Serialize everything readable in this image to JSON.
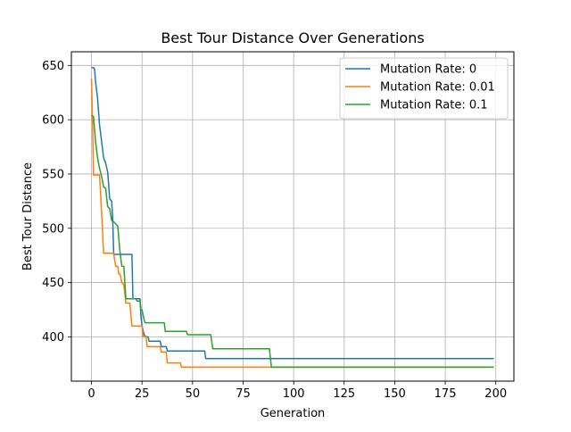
{
  "chart_data": {
    "type": "line",
    "title": "Best Tour Distance Over Generations",
    "xlabel": "Generation",
    "ylabel": "Best Tour Distance",
    "xlim": [
      -9.95,
      208.95
    ],
    "ylim": [
      359.2,
      662.6
    ],
    "xticks": [
      0,
      25,
      50,
      75,
      100,
      125,
      150,
      175,
      200
    ],
    "yticks": [
      400,
      450,
      500,
      550,
      600,
      650
    ],
    "grid": true,
    "legend_position": "top-right",
    "series": [
      {
        "name": "Mutation Rate: 0",
        "color": "#1f77b4",
        "points": [
          [
            0,
            648
          ],
          [
            1,
            648
          ],
          [
            1.5,
            647
          ],
          [
            2,
            635
          ],
          [
            3,
            620
          ],
          [
            4,
            595
          ],
          [
            5,
            580
          ],
          [
            6,
            565
          ],
          [
            7,
            560
          ],
          [
            8,
            552
          ],
          [
            8.5,
            540
          ],
          [
            9,
            527
          ],
          [
            10,
            525
          ],
          [
            10.5,
            508
          ],
          [
            11,
            476
          ],
          [
            20,
            476
          ],
          [
            20.5,
            435
          ],
          [
            24,
            435
          ],
          [
            24.5,
            418
          ],
          [
            25,
            410
          ],
          [
            26,
            402
          ],
          [
            27,
            400
          ],
          [
            28,
            400
          ],
          [
            28.5,
            396
          ],
          [
            34,
            396
          ],
          [
            34.5,
            391
          ],
          [
            37,
            391
          ],
          [
            37.5,
            387
          ],
          [
            56,
            387
          ],
          [
            56.5,
            380
          ],
          [
            199,
            380
          ]
        ]
      },
      {
        "name": "Mutation Rate: 0.01",
        "color": "#ff7f0e",
        "points": [
          [
            0,
            638
          ],
          [
            0.5,
            600
          ],
          [
            1,
            549
          ],
          [
            4,
            549
          ],
          [
            5,
            515
          ],
          [
            6,
            477
          ],
          [
            11,
            477
          ],
          [
            11.5,
            470
          ],
          [
            12,
            465
          ],
          [
            13,
            465
          ],
          [
            13.5,
            458
          ],
          [
            14,
            458
          ],
          [
            14.5,
            455
          ],
          [
            15,
            450
          ],
          [
            16,
            448
          ],
          [
            16.5,
            440
          ],
          [
            17,
            431
          ],
          [
            19,
            431
          ],
          [
            19.5,
            420
          ],
          [
            20,
            410
          ],
          [
            25,
            410
          ],
          [
            25.5,
            400
          ],
          [
            27,
            400
          ],
          [
            27.5,
            391
          ],
          [
            34,
            391
          ],
          [
            34.5,
            386
          ],
          [
            37,
            386
          ],
          [
            37.5,
            376
          ],
          [
            44,
            376
          ],
          [
            44.5,
            372
          ],
          [
            199,
            372
          ]
        ]
      },
      {
        "name": "Mutation Rate: 0.1",
        "color": "#2ca02c",
        "points": [
          [
            0,
            604
          ],
          [
            1,
            603
          ],
          [
            2,
            580
          ],
          [
            3,
            565
          ],
          [
            4,
            555
          ],
          [
            5,
            548
          ],
          [
            6,
            538
          ],
          [
            7,
            537
          ],
          [
            8,
            520
          ],
          [
            9,
            518
          ],
          [
            10,
            507
          ],
          [
            11,
            506
          ],
          [
            12,
            504
          ],
          [
            13,
            502
          ],
          [
            14,
            480
          ],
          [
            15,
            465
          ],
          [
            16,
            465
          ],
          [
            17,
            435
          ],
          [
            22,
            435
          ],
          [
            22.5,
            433
          ],
          [
            24,
            433
          ],
          [
            24.5,
            425
          ],
          [
            25,
            425
          ],
          [
            26,
            416
          ],
          [
            26.5,
            413
          ],
          [
            36,
            413
          ],
          [
            36.5,
            405
          ],
          [
            47,
            405
          ],
          [
            47.5,
            402
          ],
          [
            59,
            402
          ],
          [
            60,
            389
          ],
          [
            88,
            389
          ],
          [
            89,
            372
          ],
          [
            199,
            372
          ]
        ]
      }
    ]
  }
}
